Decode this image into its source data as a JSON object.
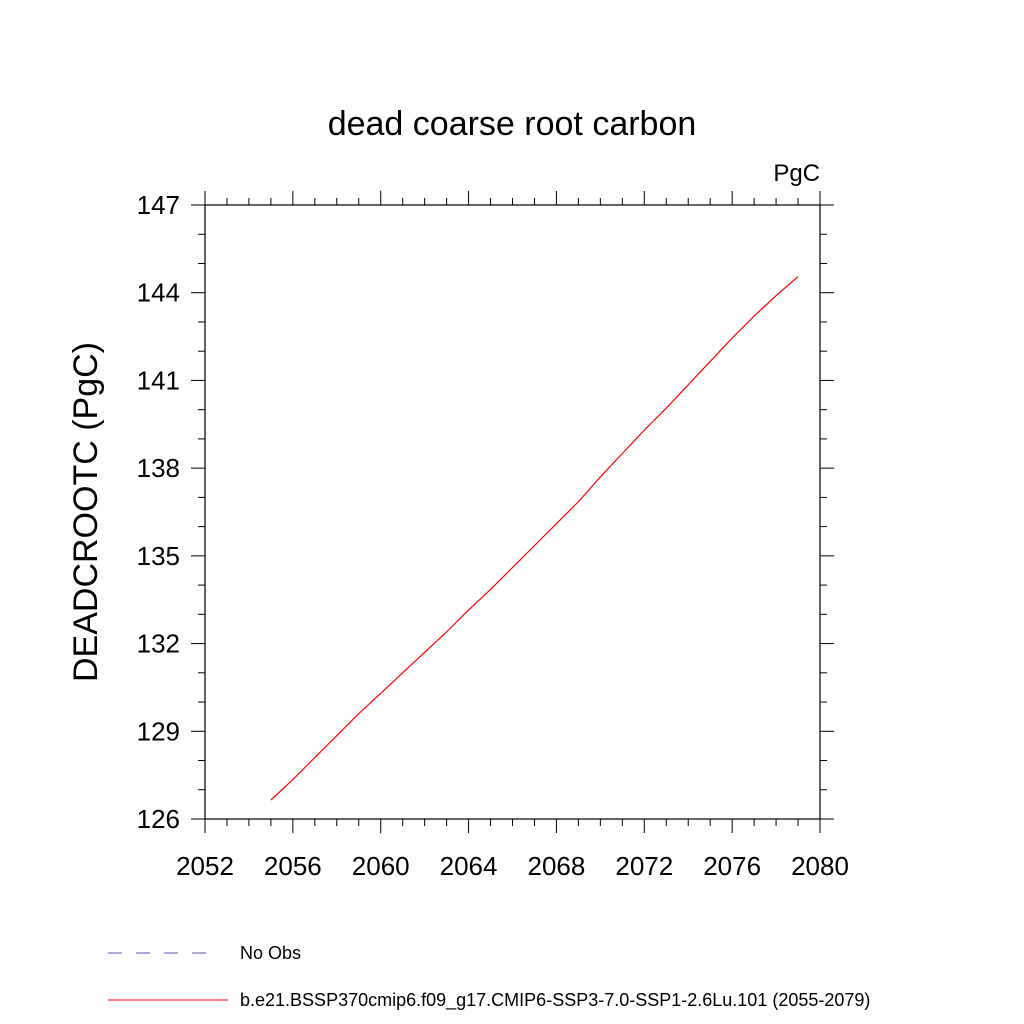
{
  "chart_data": {
    "type": "line",
    "title": "dead coarse root carbon",
    "units_label": "PgC",
    "ylabel": "DEADCROOTC  (PgC)",
    "xlabel": "",
    "xlim": [
      2052,
      2080
    ],
    "ylim": [
      126,
      147
    ],
    "x_ticks": [
      "2052",
      "2056",
      "2060",
      "2064",
      "2068",
      "2072",
      "2076",
      "2080"
    ],
    "y_ticks": [
      "126",
      "129",
      "132",
      "135",
      "138",
      "141",
      "144",
      "147"
    ],
    "grid": false,
    "series": [
      {
        "name": "b.e21.BSSP370cmip6.f09_g17.CMIP6-SSP3-7.0-SSP1-2.6Lu.101 (2055-2079)",
        "color": "#ff0000",
        "x": [
          2055,
          2056,
          2057,
          2058,
          2059,
          2060,
          2061,
          2062,
          2063,
          2064,
          2065,
          2066,
          2067,
          2068,
          2069,
          2070,
          2071,
          2072,
          2073,
          2074,
          2075,
          2076,
          2077,
          2078,
          2079
        ],
        "y": [
          126.65,
          127.35,
          128.1,
          128.85,
          129.6,
          130.3,
          131.0,
          131.7,
          132.4,
          133.15,
          133.85,
          134.6,
          135.35,
          136.1,
          136.85,
          137.7,
          138.5,
          139.3,
          140.05,
          140.85,
          141.65,
          142.45,
          143.2,
          143.9,
          144.55
        ]
      }
    ],
    "legend": {
      "placement": "bottom-left",
      "entries": [
        {
          "label": "No Obs",
          "color": "#5a5ab4",
          "style": "dashed"
        },
        {
          "label": "b.e21.BSSP370cmip6.f09_g17.CMIP6-SSP3-7.0-SSP1-2.6Lu.101 (2055-2079)",
          "color": "#ff0000",
          "style": "solid"
        }
      ]
    }
  }
}
